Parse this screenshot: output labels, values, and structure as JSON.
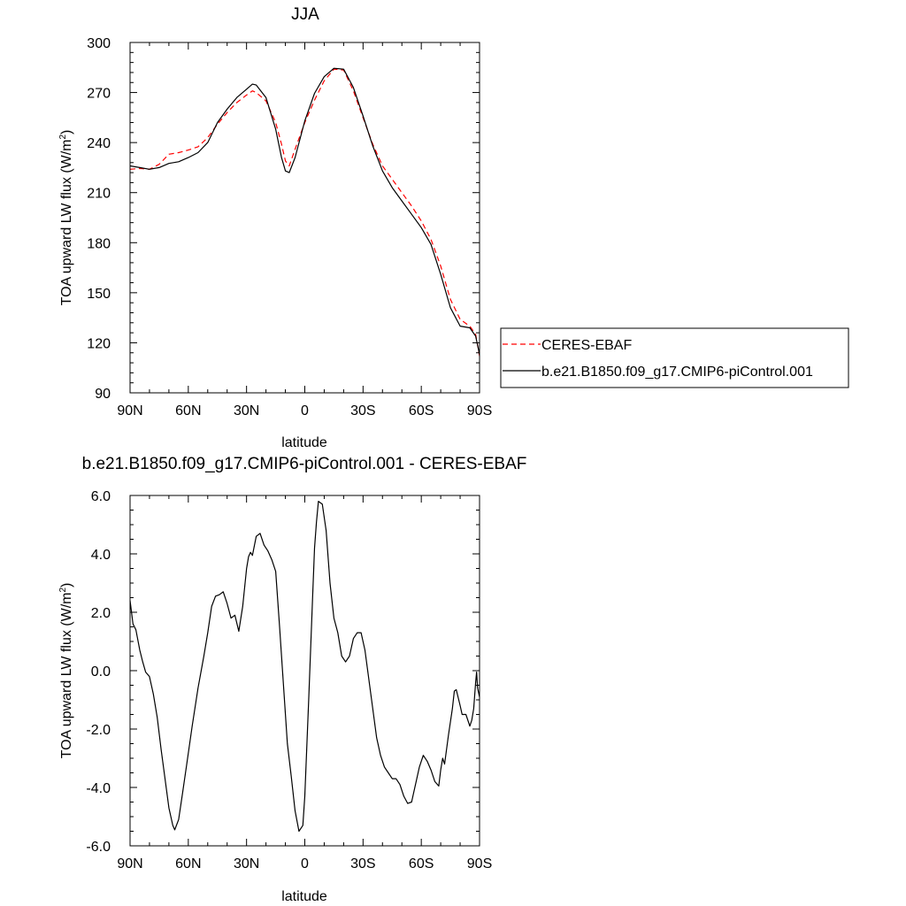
{
  "chart_data": [
    {
      "type": "line",
      "title": "JJA",
      "xlabel": "latitude",
      "ylabel": "TOA upward LW flux (W/m",
      "ylabel_sup": "2",
      "ylabel_close": ")",
      "xlim": [
        90,
        -90
      ],
      "ylim": [
        90,
        300
      ],
      "xticks": [
        90,
        60,
        30,
        0,
        -30,
        -60,
        -90
      ],
      "xtick_labels": [
        "90N",
        "60N",
        "30N",
        "0",
        "30S",
        "60S",
        "90S"
      ],
      "yticks": [
        90,
        120,
        150,
        180,
        210,
        240,
        270,
        300
      ],
      "ytick_labels": [
        "90",
        "120",
        "150",
        "180",
        "210",
        "240",
        "270",
        "300"
      ],
      "legend": "outside-right",
      "grid": false,
      "series": [
        {
          "name": "CERES-EBAF",
          "color": "#ff0000",
          "dash": true,
          "x": [
            90,
            85,
            80,
            75,
            70,
            65,
            60,
            55,
            50,
            45,
            40,
            35,
            30,
            27,
            25,
            20,
            15,
            12,
            10,
            8,
            5,
            0,
            -5,
            -10,
            -15,
            -20,
            -25,
            -30,
            -35,
            -40,
            -45,
            -50,
            -55,
            -60,
            -65,
            -70,
            -75,
            -80,
            -85,
            -88,
            -90
          ],
          "values": [
            224,
            224.5,
            224,
            227,
            233,
            234,
            235.5,
            237.5,
            243,
            251,
            258,
            264,
            268.5,
            271,
            270,
            265,
            252,
            239,
            229,
            226,
            236,
            252,
            265.5,
            277,
            284,
            283.5,
            271,
            255,
            239,
            226,
            218,
            210,
            202,
            193,
            182,
            166,
            146,
            134,
            130,
            125,
            112
          ]
        },
        {
          "name": "b.e21.B1850.f09_g17.CMIP6-piControl.001",
          "color": "#000000",
          "dash": false,
          "x": [
            90,
            85,
            80,
            75,
            70,
            65,
            60,
            55,
            50,
            45,
            40,
            35,
            30,
            27,
            25,
            20,
            15,
            12,
            10,
            8,
            5,
            0,
            -5,
            -10,
            -15,
            -20,
            -25,
            -30,
            -35,
            -40,
            -45,
            -50,
            -55,
            -60,
            -65,
            -70,
            -75,
            -80,
            -85,
            -88,
            -90
          ],
          "values": [
            226,
            225,
            224,
            225,
            227.5,
            228.5,
            231,
            234,
            240,
            252,
            260,
            267,
            272,
            275,
            274.5,
            267,
            248,
            231,
            223,
            222,
            231,
            253,
            269.5,
            279.5,
            284.5,
            284,
            273,
            256,
            238,
            223,
            213,
            205,
            197,
            189,
            179,
            161,
            141,
            130,
            129,
            124,
            113
          ]
        }
      ]
    },
    {
      "type": "line",
      "title": "b.e21.B1850.f09_g17.CMIP6-piControl.001 - CERES-EBAF",
      "xlabel": "latitude",
      "ylabel": "TOA upward LW flux (W/m",
      "ylabel_sup": "2",
      "ylabel_close": ")",
      "xlim": [
        90,
        -90
      ],
      "ylim": [
        -6,
        6
      ],
      "xticks": [
        90,
        60,
        30,
        0,
        -30,
        -60,
        -90
      ],
      "xtick_labels": [
        "90N",
        "60N",
        "30N",
        "0",
        "30S",
        "60S",
        "90S"
      ],
      "yticks": [
        -6,
        -4,
        -2,
        0,
        2,
        4,
        6
      ],
      "ytick_labels": [
        "-6.0",
        "-4.0",
        "-2.0",
        "0.0",
        "2.0",
        "4.0",
        "6.0"
      ],
      "grid": false,
      "series": [
        {
          "color": "#000000",
          "dash": false,
          "x": [
            90,
            88.5,
            87,
            85,
            83.5,
            82,
            80,
            78,
            76,
            74,
            72,
            70,
            68,
            67,
            65,
            63,
            61,
            58,
            55,
            52,
            50,
            48,
            46,
            44,
            42,
            40,
            38,
            36,
            34,
            32,
            30,
            29,
            28,
            27,
            25,
            23,
            21,
            19,
            17,
            15,
            13,
            11,
            9,
            7,
            5,
            3,
            1,
            0,
            -2,
            -4,
            -5,
            -6,
            -7,
            -9,
            -11,
            -13,
            -15,
            -17,
            -19,
            -21,
            -23,
            -25,
            -27,
            -29,
            -31,
            -33,
            -35,
            -37,
            -39,
            -41,
            -43,
            -45,
            -47,
            -49,
            -51,
            -53,
            -55,
            -57,
            -59,
            -61,
            -63,
            -65,
            -67,
            -69,
            -70,
            -71,
            -72,
            -74,
            -76,
            -77,
            -78,
            -80,
            -81,
            -83,
            -85,
            -86,
            -87,
            -88,
            -88.5,
            -89,
            -90
          ],
          "values": [
            2.4,
            1.6,
            1.4,
            0.7,
            0.3,
            -0.05,
            -0.2,
            -0.8,
            -1.6,
            -2.7,
            -3.7,
            -4.7,
            -5.3,
            -5.45,
            -5.1,
            -4.2,
            -3.3,
            -1.9,
            -0.6,
            0.5,
            1.3,
            2.2,
            2.55,
            2.6,
            2.7,
            2.3,
            1.8,
            1.9,
            1.35,
            2.2,
            3.5,
            3.9,
            4.05,
            3.95,
            4.6,
            4.7,
            4.3,
            4.1,
            3.8,
            3.4,
            1.5,
            -0.5,
            -2.5,
            -3.6,
            -4.8,
            -5.5,
            -5.3,
            -4.3,
            -1.0,
            2.5,
            4.2,
            5.1,
            5.8,
            5.7,
            4.8,
            3.0,
            1.8,
            1.3,
            0.5,
            0.3,
            0.5,
            1.1,
            1.3,
            1.3,
            0.7,
            -0.3,
            -1.3,
            -2.3,
            -2.9,
            -3.3,
            -3.5,
            -3.7,
            -3.7,
            -3.9,
            -4.3,
            -4.55,
            -4.5,
            -3.9,
            -3.3,
            -2.9,
            -3.1,
            -3.4,
            -3.8,
            -3.95,
            -3.4,
            -3.0,
            -3.2,
            -2.2,
            -1.3,
            -0.7,
            -0.65,
            -1.2,
            -1.5,
            -1.5,
            -1.9,
            -1.7,
            -1.3,
            -0.4,
            -0.05,
            -0.6,
            -0.9
          ]
        }
      ]
    }
  ]
}
